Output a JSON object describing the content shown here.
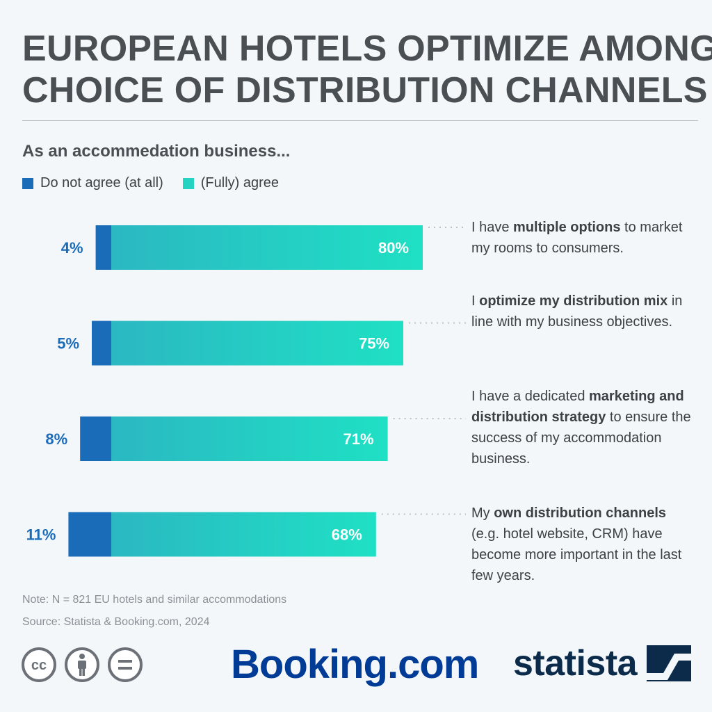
{
  "header": {
    "title_line1": "EUROPEAN HOTELS OPTIMIZE AMONG",
    "title_line2": "CHOICE OF DISTRIBUTION CHANNELS",
    "subtitle": "As an accommedation business..."
  },
  "legend": {
    "items": [
      {
        "label": "Do not agree (at all)",
        "color": "#1a6bb8"
      },
      {
        "label": "(Fully) agree",
        "color": "#26d3c0"
      }
    ]
  },
  "chart_data": {
    "type": "bar",
    "orientation": "horizontal",
    "stacked": "diverging",
    "categories": [
      "I have multiple options to market my rooms to consumers.",
      "I optimize my distribution mix in line with my business objectives.",
      "I have a dedicated marketing and distribution strategy to ensure the success of my accommodation business.",
      "My own distribution channels (e.g. hotel website, CRM) have become more important in the last few years."
    ],
    "series": [
      {
        "name": "Do not agree (at all)",
        "values": [
          4,
          5,
          8,
          11
        ],
        "labels": [
          "4%",
          "5%",
          "8%",
          "11%"
        ]
      },
      {
        "name": "(Fully) agree",
        "values": [
          80,
          75,
          71,
          68
        ],
        "labels": [
          "80%",
          "75%",
          "71%",
          "68%"
        ]
      }
    ],
    "unit": "%",
    "colors": {
      "disagree": "#1a6bb8",
      "agree_start": "#2bb8c2",
      "agree_end": "#1fe0c4",
      "disagree_label": "#1a6bb8",
      "connector": "#b9c0c7"
    }
  },
  "statements": [
    {
      "parts": [
        {
          "t": "I have ",
          "b": false
        },
        {
          "t": "multiple options",
          "b": true
        },
        {
          "t": " to market my rooms to consumers.",
          "b": false
        }
      ]
    },
    {
      "parts": [
        {
          "t": "I ",
          "b": false
        },
        {
          "t": "optimize my distribution mix",
          "b": true
        },
        {
          "t": " in line with my business objectives.",
          "b": false
        }
      ]
    },
    {
      "parts": [
        {
          "t": "I have a dedicated ",
          "b": false
        },
        {
          "t": "marketing and distribution strategy",
          "b": true
        },
        {
          "t": " to ensure the success of my accommodation business.",
          "b": false
        }
      ]
    },
    {
      "parts": [
        {
          "t": "My ",
          "b": false
        },
        {
          "t": "own distribution channels",
          "b": true
        },
        {
          "t": " (e.g. hotel website, CRM) have become more important in the last few years.",
          "b": false
        }
      ]
    }
  ],
  "footer": {
    "note": "Note: N = 821 EU hotels and similar accommodations",
    "source": "Source:  Statista & Booking.com, 2024",
    "license_icons": [
      "creative-commons-icon",
      "attribution-icon",
      "no-derivatives-icon"
    ],
    "booking_logo": "Booking.com",
    "statista_logo": "statista"
  }
}
